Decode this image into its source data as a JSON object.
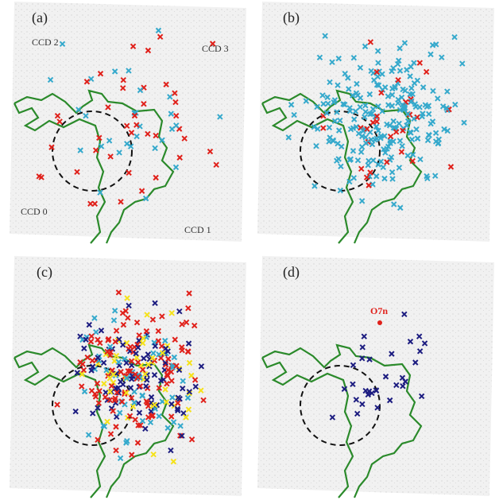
{
  "panels": [
    {
      "label": "(a)",
      "annotations": [
        "CCD 2",
        "CCD 3",
        "CCD 0",
        "CCD 1"
      ]
    },
    {
      "label": "(b)"
    },
    {
      "label": "(c)"
    },
    {
      "label": "(d)",
      "annotations": [
        "O7n"
      ]
    }
  ]
}
